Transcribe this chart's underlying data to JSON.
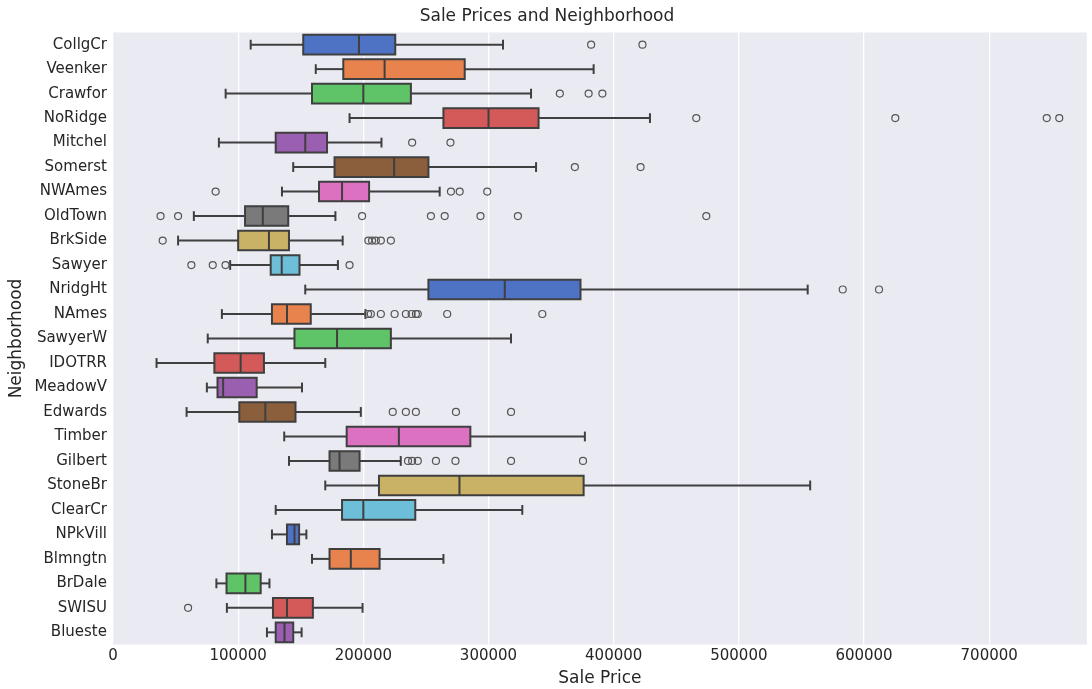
{
  "chart_data": {
    "type": "box",
    "orientation": "horizontal",
    "title": "Sale Prices and Neighborhood",
    "xlabel": "Sale Price",
    "ylabel": "Neighborhood",
    "categories": [
      "CollgCr",
      "Veenker",
      "Crawfor",
      "NoRidge",
      "Mitchel",
      "Somerst",
      "NWAmes",
      "OldTown",
      "BrkSide",
      "Sawyer",
      "NridgHt",
      "NAmes",
      "SawyerW",
      "IDOTRR",
      "MeadowV",
      "Edwards",
      "Timber",
      "Gilbert",
      "StoneBr",
      "ClearCr",
      "NPkVill",
      "Blmngtn",
      "BrDale",
      "SWISU",
      "Blueste"
    ],
    "colors": [
      "#4e73c5",
      "#e8834e",
      "#5fc467",
      "#d45a5a",
      "#9a5fb0",
      "#8b5e3c",
      "#dd71c1",
      "#7a7a7a",
      "#c9b266",
      "#6dbed9",
      "#4e73c5",
      "#e8834e",
      "#5fc467",
      "#d45a5a",
      "#9a5fb0",
      "#8b5e3c",
      "#dd71c1",
      "#7a7a7a",
      "#c9b266",
      "#6dbed9",
      "#4e73c5",
      "#e8834e",
      "#5fc467",
      "#d45a5a",
      "#9a5fb0"
    ],
    "boxes": [
      {
        "low": 110000,
        "q1": 152000,
        "median": 196500,
        "q3": 225500,
        "high": 311600,
        "outliers": [
          382000,
          423000
        ]
      },
      {
        "low": 162000,
        "q1": 184000,
        "median": 217000,
        "q3": 281000,
        "high": 384000
      },
      {
        "low": 90000,
        "q1": 159000,
        "median": 200000,
        "q3": 238000,
        "high": 334000,
        "outliers": [
          357000,
          380000,
          391000
        ]
      },
      {
        "low": 189000,
        "q1": 264000,
        "median": 300000,
        "q3": 340000,
        "high": 429000,
        "outliers": [
          466000,
          625000,
          746000,
          756000
        ]
      },
      {
        "low": 84600,
        "q1": 130000,
        "median": 153600,
        "q3": 171000,
        "high": 214500,
        "outliers": [
          239000,
          269600
        ]
      },
      {
        "low": 144000,
        "q1": 177000,
        "median": 224600,
        "q3": 252000,
        "high": 338000,
        "outliers": [
          369000,
          421500
        ]
      },
      {
        "low": 135000,
        "q1": 164600,
        "median": 183000,
        "q3": 204600,
        "high": 261000,
        "outliers": [
          82000,
          270000,
          277000,
          299000
        ]
      },
      {
        "low": 64600,
        "q1": 105500,
        "median": 119700,
        "q3": 140000,
        "high": 177700,
        "outliers": [
          38000,
          52000,
          199000,
          254000,
          265000,
          293600,
          323500,
          474000
        ]
      },
      {
        "low": 52000,
        "q1": 100000,
        "median": 124600,
        "q3": 140600,
        "high": 183500,
        "outliers": [
          39700,
          204000,
          207000,
          210000,
          214000,
          222000
        ]
      },
      {
        "low": 93600,
        "q1": 126000,
        "median": 134800,
        "q3": 149000,
        "high": 179700,
        "outliers": [
          62600,
          79700,
          89900,
          189000
        ]
      },
      {
        "low": 153600,
        "q1": 252000,
        "median": 313000,
        "q3": 373500,
        "high": 555000,
        "outliers": [
          583000,
          612000
        ]
      },
      {
        "low": 87000,
        "q1": 127000,
        "median": 139000,
        "q3": 158000,
        "high": 201700,
        "outliers": [
          203800,
          206000,
          214000,
          225000,
          234000,
          238600,
          242000,
          243500,
          267000,
          343000
        ]
      },
      {
        "low": 75700,
        "q1": 145000,
        "median": 179000,
        "q3": 222000,
        "high": 318000
      },
      {
        "low": 34800,
        "q1": 81000,
        "median": 102000,
        "q3": 120600,
        "high": 169600
      },
      {
        "low": 75000,
        "q1": 83500,
        "median": 88000,
        "q3": 114800,
        "high": 151000
      },
      {
        "low": 58800,
        "q1": 100900,
        "median": 121700,
        "q3": 145800,
        "high": 198000,
        "outliers": [
          223500,
          234000,
          242000,
          274000,
          318000
        ]
      },
      {
        "low": 136800,
        "q1": 186700,
        "median": 228400,
        "q3": 285500,
        "high": 377000
      },
      {
        "low": 140600,
        "q1": 173000,
        "median": 181000,
        "q3": 197000,
        "high": 229900,
        "outliers": [
          235700,
          239000,
          243500,
          258000,
          273600,
          318000,
          375500
        ]
      },
      {
        "low": 169600,
        "q1": 212500,
        "median": 276800,
        "q3": 376000,
        "high": 557000
      },
      {
        "low": 130000,
        "q1": 183000,
        "median": 200000,
        "q3": 241500,
        "high": 327000
      },
      {
        "low": 127000,
        "q1": 139000,
        "median": 145000,
        "q3": 148700,
        "high": 154500
      },
      {
        "low": 159000,
        "q1": 173000,
        "median": 190000,
        "q3": 213000,
        "high": 264000
      },
      {
        "low": 82600,
        "q1": 90700,
        "median": 105800,
        "q3": 118000,
        "high": 125000
      },
      {
        "low": 91000,
        "q1": 127800,
        "median": 139000,
        "q3": 159700,
        "high": 199400,
        "outliers": [
          60000
        ]
      },
      {
        "low": 123000,
        "q1": 130000,
        "median": 137000,
        "q3": 144000,
        "high": 150700
      }
    ],
    "xlim": [
      0,
      778000
    ],
    "xticks": [
      0,
      100000,
      200000,
      300000,
      400000,
      500000,
      600000,
      700000
    ],
    "grid": "x"
  }
}
